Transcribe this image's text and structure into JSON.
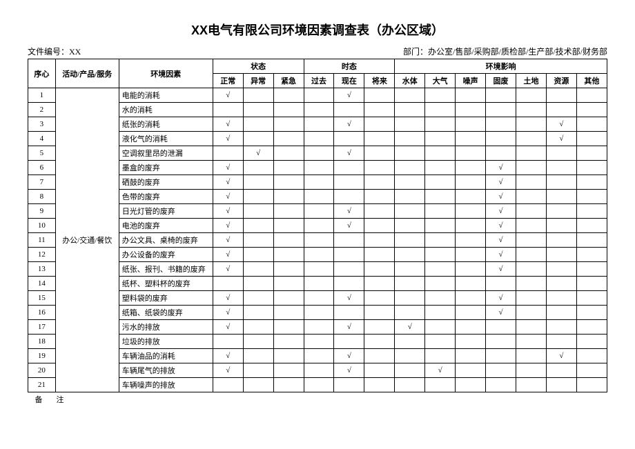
{
  "title": "XX电气有限公司环境因素调查表（办公区域）",
  "meta": {
    "file_no_label": "文件编号：",
    "file_no": "XX",
    "dept_label": "部门：办公室/",
    "dept_rest": "售部/采购部/质检部/生产部/技术部/财务部"
  },
  "headers": {
    "seq": "序心",
    "activity": "活动/产品/服务",
    "factor": "环境因素",
    "status": "状态",
    "tense": "时态",
    "impact": "环境影响",
    "status_cols": [
      "正常",
      "异常",
      "紧急"
    ],
    "tense_cols": [
      "过去",
      "现在",
      "将来"
    ],
    "impact_cols": [
      "水体",
      "大气",
      "噪声",
      "固废",
      "土地",
      "资源",
      "其他"
    ]
  },
  "activity_label": "办公/交通/餐饮",
  "check": "√",
  "rows": [
    {
      "n": "1",
      "f": "电能的消耗",
      "s": [
        1,
        0,
        0
      ],
      "t": [
        0,
        1,
        0
      ],
      "i": [
        0,
        0,
        0,
        0,
        0,
        0,
        0
      ]
    },
    {
      "n": "2",
      "f": "水的消耗",
      "s": [
        0,
        0,
        0
      ],
      "t": [
        0,
        0,
        0
      ],
      "i": [
        0,
        0,
        0,
        0,
        0,
        0,
        0
      ]
    },
    {
      "n": "3",
      "f": "纸张的消耗",
      "s": [
        1,
        0,
        0
      ],
      "t": [
        0,
        1,
        0
      ],
      "i": [
        0,
        0,
        0,
        0,
        0,
        1,
        0
      ]
    },
    {
      "n": "4",
      "f": "液化气的消耗",
      "s": [
        1,
        0,
        0
      ],
      "t": [
        0,
        0,
        0
      ],
      "i": [
        0,
        0,
        0,
        0,
        0,
        1,
        0
      ]
    },
    {
      "n": "5",
      "f": "空调叙里昂的泄漏",
      "s": [
        0,
        1,
        0
      ],
      "t": [
        0,
        1,
        0
      ],
      "i": [
        0,
        0,
        0,
        0,
        0,
        0,
        0
      ]
    },
    {
      "n": "6",
      "f": "墨盒的废弃",
      "s": [
        1,
        0,
        0
      ],
      "t": [
        0,
        0,
        0
      ],
      "i": [
        0,
        0,
        0,
        1,
        0,
        0,
        0
      ]
    },
    {
      "n": "7",
      "f": "硒鼓的废弃",
      "s": [
        1,
        0,
        0
      ],
      "t": [
        0,
        0,
        0
      ],
      "i": [
        0,
        0,
        0,
        1,
        0,
        0,
        0
      ]
    },
    {
      "n": "8",
      "f": "色带的废弃",
      "s": [
        1,
        0,
        0
      ],
      "t": [
        0,
        0,
        0
      ],
      "i": [
        0,
        0,
        0,
        1,
        0,
        0,
        0
      ]
    },
    {
      "n": "9",
      "f": "日光灯管的废弃",
      "s": [
        1,
        0,
        0
      ],
      "t": [
        0,
        1,
        0
      ],
      "i": [
        0,
        0,
        0,
        1,
        0,
        0,
        0
      ]
    },
    {
      "n": "10",
      "f": "电池的废弃",
      "s": [
        1,
        0,
        0
      ],
      "t": [
        0,
        1,
        0
      ],
      "i": [
        0,
        0,
        0,
        1,
        0,
        0,
        0
      ]
    },
    {
      "n": "11",
      "f": "办公文具、桌椅的废弃",
      "s": [
        1,
        0,
        0
      ],
      "t": [
        0,
        0,
        0
      ],
      "i": [
        0,
        0,
        0,
        1,
        0,
        0,
        0
      ]
    },
    {
      "n": "12",
      "f": "办公设备的废弃",
      "s": [
        1,
        0,
        0
      ],
      "t": [
        0,
        0,
        0
      ],
      "i": [
        0,
        0,
        0,
        1,
        0,
        0,
        0
      ]
    },
    {
      "n": "13",
      "f": "纸张、报刊、书籍的废弃",
      "s": [
        1,
        0,
        0
      ],
      "t": [
        0,
        0,
        0
      ],
      "i": [
        0,
        0,
        0,
        1,
        0,
        0,
        0
      ]
    },
    {
      "n": "14",
      "f": "纸杯、塑料杯的废弃",
      "s": [
        0,
        0,
        0
      ],
      "t": [
        0,
        0,
        0
      ],
      "i": [
        0,
        0,
        0,
        0,
        0,
        0,
        0
      ]
    },
    {
      "n": "15",
      "f": "塑料袋的废弃",
      "s": [
        1,
        0,
        0
      ],
      "t": [
        0,
        1,
        0
      ],
      "i": [
        0,
        0,
        0,
        1,
        0,
        0,
        0
      ]
    },
    {
      "n": "16",
      "f": "纸箱、纸袋的废弃",
      "s": [
        1,
        0,
        0
      ],
      "t": [
        0,
        0,
        0
      ],
      "i": [
        0,
        0,
        0,
        1,
        0,
        0,
        0
      ]
    },
    {
      "n": "17",
      "f": "污水的排放",
      "s": [
        1,
        0,
        0
      ],
      "t": [
        0,
        1,
        0
      ],
      "i": [
        1,
        0,
        0,
        0,
        0,
        0,
        0
      ]
    },
    {
      "n": "18",
      "f": "垃圾的排放",
      "s": [
        0,
        0,
        0
      ],
      "t": [
        0,
        0,
        0
      ],
      "i": [
        0,
        0,
        0,
        0,
        0,
        0,
        0
      ]
    },
    {
      "n": "19",
      "f": "车辆油品的消耗",
      "s": [
        1,
        0,
        0
      ],
      "t": [
        0,
        1,
        0
      ],
      "i": [
        0,
        0,
        0,
        0,
        0,
        1,
        0
      ]
    },
    {
      "n": "20",
      "f": "车辆尾气的排放",
      "s": [
        1,
        0,
        0
      ],
      "t": [
        0,
        1,
        0
      ],
      "i": [
        0,
        1,
        0,
        0,
        0,
        0,
        0
      ]
    },
    {
      "n": "21",
      "f": "车辆噪声的排放",
      "s": [
        0,
        0,
        0
      ],
      "t": [
        0,
        0,
        0
      ],
      "i": [
        0,
        0,
        0,
        0,
        0,
        0,
        0
      ]
    }
  ],
  "footer": "备注"
}
